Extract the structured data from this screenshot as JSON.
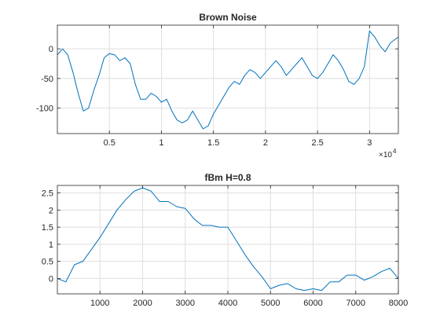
{
  "chart_data": [
    {
      "type": "line",
      "title": "Brown Noise",
      "xlabel": "",
      "ylabel": "",
      "xlim": [
        0,
        32768
      ],
      "ylim": [
        -143,
        40
      ],
      "x_ticks": [
        5000,
        10000,
        15000,
        20000,
        25000,
        30000
      ],
      "x_tick_labels": [
        "0.5",
        "1",
        "1.5",
        "2",
        "2.5",
        "3"
      ],
      "x_exponent_label": "×10",
      "x_exponent_power": "4",
      "y_ticks": [
        0,
        -50,
        -100
      ],
      "y_tick_labels": [
        "0",
        "-50",
        "-100"
      ],
      "grid": true,
      "color": "#0072bd",
      "series": [
        {
          "x": [
            0,
            500,
            1000,
            1500,
            2000,
            2500,
            3000,
            3500,
            4000,
            4500,
            5000,
            5500,
            6000,
            6500,
            7000,
            7500,
            8000,
            8500,
            9000,
            9500,
            10000,
            10500,
            11000,
            11500,
            12000,
            12500,
            13000,
            13500,
            14000,
            14500,
            15000,
            15500,
            16000,
            16500,
            17000,
            17500,
            18000,
            18500,
            19000,
            19500,
            20000,
            20500,
            21000,
            21500,
            22000,
            22500,
            23000,
            23500,
            24000,
            24500,
            25000,
            25500,
            26000,
            26500,
            27000,
            27500,
            28000,
            28500,
            29000,
            29500,
            30000,
            30500,
            31000,
            31500,
            32000,
            32768
          ],
          "values": [
            -10,
            0,
            -10,
            -40,
            -75,
            -105,
            -100,
            -70,
            -45,
            -15,
            -8,
            -10,
            -20,
            -15,
            -25,
            -60,
            -85,
            -85,
            -75,
            -80,
            -90,
            -85,
            -105,
            -120,
            -125,
            -120,
            -105,
            -120,
            -135,
            -130,
            -110,
            -95,
            -80,
            -65,
            -55,
            -60,
            -45,
            -35,
            -40,
            -50,
            -40,
            -30,
            -20,
            -30,
            -45,
            -35,
            -25,
            -15,
            -30,
            -45,
            -50,
            -40,
            -25,
            -10,
            -20,
            -35,
            -55,
            -60,
            -50,
            -30,
            30,
            20,
            5,
            -5,
            10,
            20
          ]
        }
      ]
    },
    {
      "type": "line",
      "title": "fBm H=0.8",
      "xlabel": "",
      "ylabel": "",
      "xlim": [
        0,
        8000
      ],
      "ylim": [
        -0.45,
        2.72
      ],
      "x_ticks": [
        1000,
        2000,
        3000,
        4000,
        5000,
        6000,
        7000,
        8000
      ],
      "x_tick_labels": [
        "1000",
        "2000",
        "3000",
        "4000",
        "5000",
        "6000",
        "7000",
        "8000"
      ],
      "y_ticks": [
        0,
        0.5,
        1,
        1.5,
        2,
        2.5
      ],
      "y_tick_labels": [
        "0",
        "0.5",
        "1",
        "1.5",
        "2",
        "2.5"
      ],
      "grid": true,
      "color": "#0072bd",
      "series": [
        {
          "x": [
            0,
            200,
            400,
            600,
            800,
            1000,
            1200,
            1400,
            1600,
            1800,
            2000,
            2200,
            2400,
            2600,
            2800,
            3000,
            3200,
            3400,
            3600,
            3800,
            4000,
            4200,
            4400,
            4600,
            4800,
            5000,
            5200,
            5400,
            5600,
            5800,
            6000,
            6200,
            6400,
            6600,
            6800,
            7000,
            7200,
            7400,
            7600,
            7800,
            8000
          ],
          "values": [
            0,
            -0.1,
            0.4,
            0.5,
            0.85,
            1.2,
            1.6,
            2.0,
            2.3,
            2.55,
            2.65,
            2.55,
            2.25,
            2.25,
            2.1,
            2.05,
            1.75,
            1.55,
            1.55,
            1.5,
            1.5,
            1.1,
            0.7,
            0.35,
            0.05,
            -0.3,
            -0.2,
            -0.15,
            -0.3,
            -0.35,
            -0.3,
            -0.35,
            -0.1,
            -0.1,
            0.1,
            0.1,
            -0.05,
            0.05,
            0.2,
            0.3,
            0.0
          ]
        }
      ]
    }
  ]
}
